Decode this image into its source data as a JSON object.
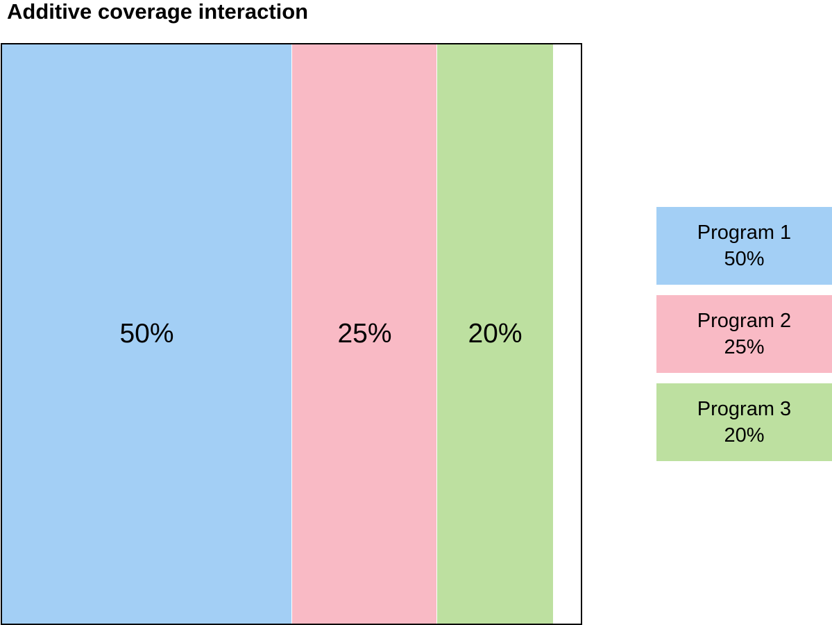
{
  "title": "Additive coverage interaction",
  "colors": {
    "program1": "#a3cff5",
    "program2": "#f9bac5",
    "program3": "#bde0a0"
  },
  "segments": [
    {
      "label": "50%",
      "value": 50,
      "color": "#a3cff5"
    },
    {
      "label": "25%",
      "value": 25,
      "color": "#f9bac5"
    },
    {
      "label": "20%",
      "value": 20,
      "color": "#bde0a0"
    }
  ],
  "legend": [
    {
      "name": "Program 1",
      "value": "50%",
      "color": "#a3cff5"
    },
    {
      "name": "Program 2",
      "value": "25%",
      "color": "#f9bac5"
    },
    {
      "name": "Program 3",
      "value": "20%",
      "color": "#bde0a0"
    }
  ]
}
